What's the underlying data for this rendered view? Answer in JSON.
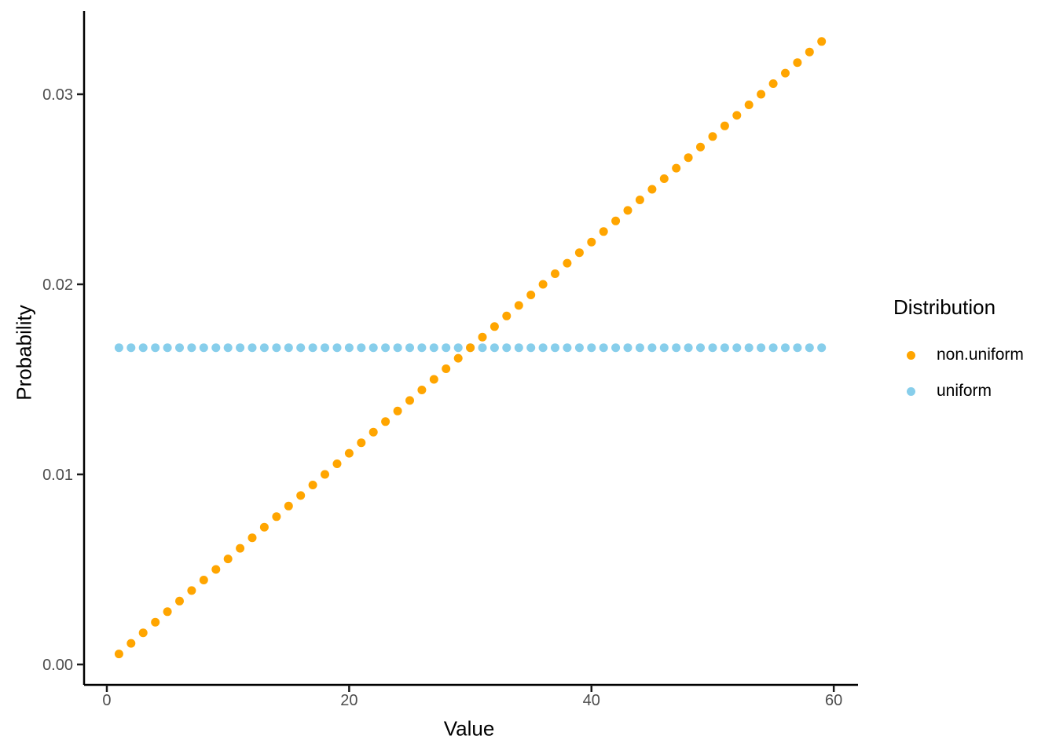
{
  "chart_data": {
    "type": "scatter",
    "title": "",
    "xlabel": "Value",
    "ylabel": "Probability",
    "xlim": [
      -1.88,
      62.0
    ],
    "ylim": [
      -0.001074,
      0.03438
    ],
    "grid": false,
    "legend_position": "right",
    "legend_title": "Distribution",
    "x": [
      1,
      2,
      3,
      4,
      5,
      6,
      7,
      8,
      9,
      10,
      11,
      12,
      13,
      14,
      15,
      16,
      17,
      18,
      19,
      20,
      21,
      22,
      23,
      24,
      25,
      26,
      27,
      28,
      29,
      30,
      31,
      32,
      33,
      34,
      35,
      36,
      37,
      38,
      39,
      40,
      41,
      42,
      43,
      44,
      45,
      46,
      47,
      48,
      49,
      50,
      51,
      52,
      53,
      54,
      55,
      56,
      57,
      58,
      59
    ],
    "x_ticks": [
      {
        "label": "0",
        "value": 0
      },
      {
        "label": "20",
        "value": 20
      },
      {
        "label": "40",
        "value": 40
      },
      {
        "label": "60",
        "value": 60
      }
    ],
    "y_ticks": [
      {
        "label": "0.00",
        "value": 0.0
      },
      {
        "label": "0.01",
        "value": 0.01
      },
      {
        "label": "0.02",
        "value": 0.02
      },
      {
        "label": "0.03",
        "value": 0.03
      }
    ],
    "series": [
      {
        "name": "non.uniform",
        "color": "#FFA500",
        "values": [
          0.000556,
          0.001111,
          0.001667,
          0.002222,
          0.002778,
          0.003333,
          0.003889,
          0.004444,
          0.005,
          0.005556,
          0.006111,
          0.006667,
          0.007222,
          0.007778,
          0.008333,
          0.008889,
          0.009444,
          0.01,
          0.010556,
          0.011111,
          0.011667,
          0.012222,
          0.012778,
          0.013333,
          0.013889,
          0.014444,
          0.015,
          0.015556,
          0.016111,
          0.016667,
          0.017222,
          0.017778,
          0.018333,
          0.018889,
          0.019444,
          0.02,
          0.020556,
          0.021111,
          0.021667,
          0.022222,
          0.022778,
          0.023333,
          0.023889,
          0.024444,
          0.025,
          0.025556,
          0.026111,
          0.026667,
          0.027222,
          0.027778,
          0.028333,
          0.028889,
          0.029444,
          0.03,
          0.030556,
          0.031111,
          0.031667,
          0.032222,
          0.032778
        ]
      },
      {
        "name": "uniform",
        "color": "#87CEEB",
        "values": [
          0.016667,
          0.016667,
          0.016667,
          0.016667,
          0.016667,
          0.016667,
          0.016667,
          0.016667,
          0.016667,
          0.016667,
          0.016667,
          0.016667,
          0.016667,
          0.016667,
          0.016667,
          0.016667,
          0.016667,
          0.016667,
          0.016667,
          0.016667,
          0.016667,
          0.016667,
          0.016667,
          0.016667,
          0.016667,
          0.016667,
          0.016667,
          0.016667,
          0.016667,
          0.016667,
          0.016667,
          0.016667,
          0.016667,
          0.016667,
          0.016667,
          0.016667,
          0.016667,
          0.016667,
          0.016667,
          0.016667,
          0.016667,
          0.016667,
          0.016667,
          0.016667,
          0.016667,
          0.016667,
          0.016667,
          0.016667,
          0.016667,
          0.016667,
          0.016667,
          0.016667,
          0.016667,
          0.016667,
          0.016667,
          0.016667,
          0.016667,
          0.016667,
          0.016667
        ]
      }
    ],
    "style": {
      "axis_line_color": "#000000",
      "tick_color": "#1a1a1a",
      "tick_label_color": "#4d4d4d",
      "point_radius": 5.5
    }
  }
}
